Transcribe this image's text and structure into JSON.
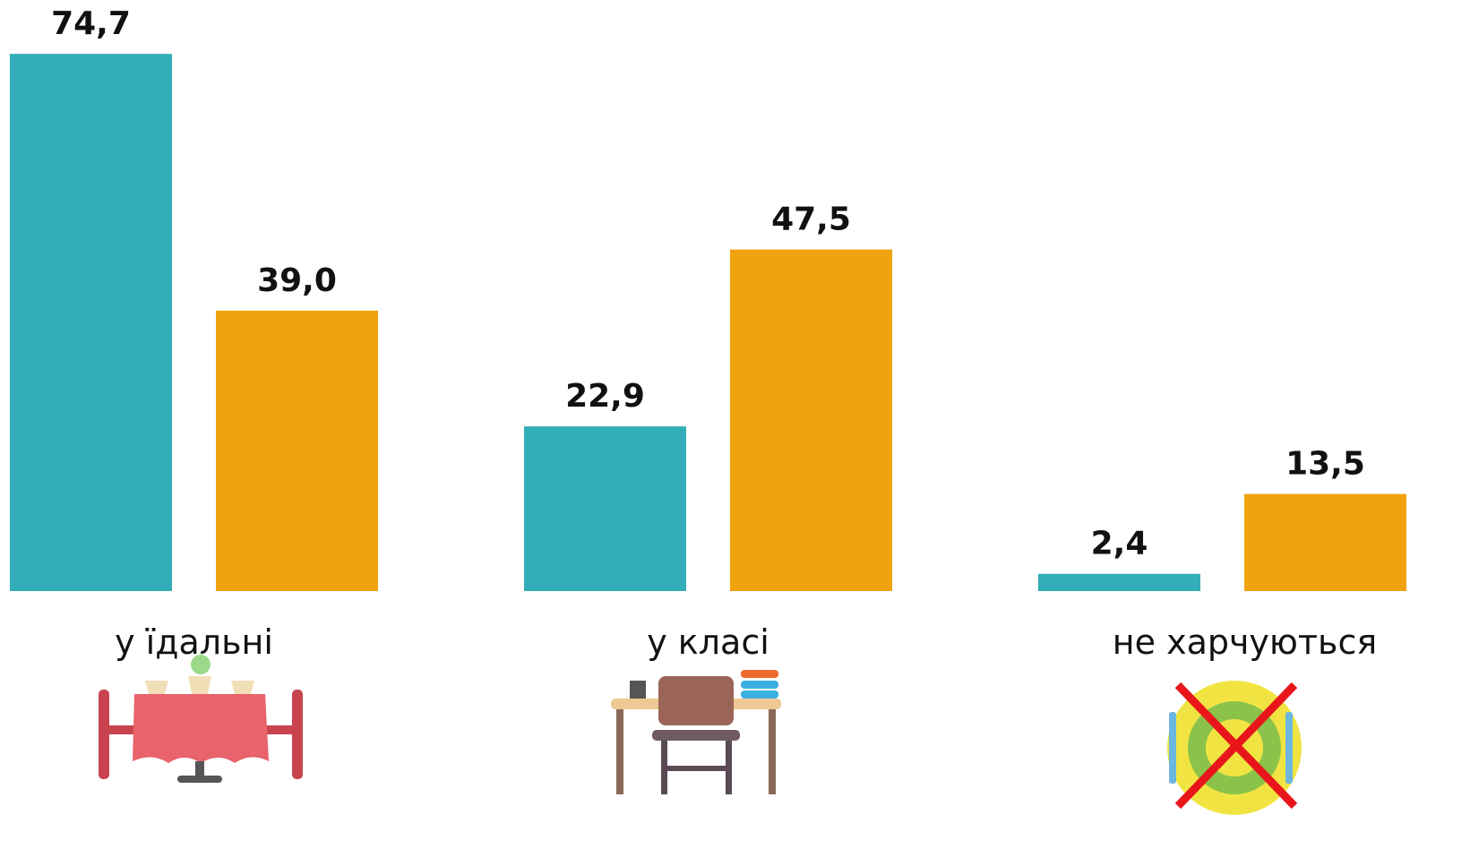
{
  "chart_data": {
    "type": "bar",
    "categories": [
      "у їдальні",
      "у класі",
      "не харчуються"
    ],
    "series": [
      {
        "color": "#33aeb8",
        "values": [
          74.7,
          22.9,
          2.4
        ],
        "value_labels": [
          "74,7",
          "22,9",
          "2,4"
        ]
      },
      {
        "color": "#f0a30f",
        "values": [
          39.0,
          47.5,
          13.5
        ],
        "value_labels": [
          "39,0",
          "47,5",
          "13,5"
        ]
      }
    ],
    "ylim": [
      0,
      80
    ]
  }
}
